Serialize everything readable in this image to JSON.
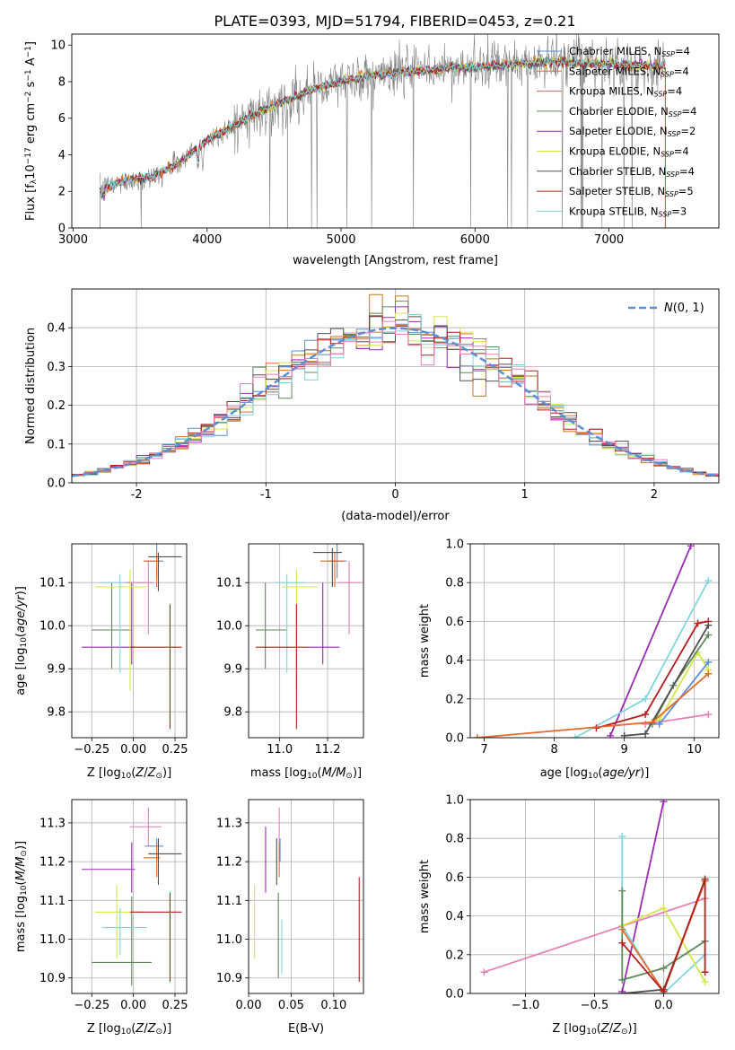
{
  "figure": {
    "title": "PLATE=0393, MJD=51794, FIBERID=0453, z=0.21"
  },
  "colors": {
    "data": "#808080",
    "gaussian": "#5b8fd6"
  },
  "chart_data": [
    {
      "id": "spectrum",
      "type": "line",
      "xlabel": "wavelength [Angstrom, rest frame]",
      "ylabel": "Flux [f_λ 10^-17 erg cm^-2 s^-1 A^-1]",
      "xlim": [
        2990,
        7820
      ],
      "ylim": [
        0,
        10.6
      ],
      "xticks": [
        3000,
        4000,
        5000,
        6000,
        7000
      ],
      "yticks": [
        0,
        2,
        4,
        6,
        8,
        10
      ],
      "grid": false,
      "legend_position": "bottom-right",
      "legend": [
        {
          "label": "Chabrier MILES, N_SSP=4",
          "color": "#5b8fd6"
        },
        {
          "label": "Salpeter MILES, N_SSP=4",
          "color": "#e8692a"
        },
        {
          "label": "Kroupa MILES, N_SSP=4",
          "color": "#c8781a"
        },
        {
          "label": "Chabrier ELODIE, N_SSP=4",
          "color": "#5e8b5e"
        },
        {
          "label": "Salpeter ELODIE, N_SSP=2",
          "color": "#9b2ab5"
        },
        {
          "label": "Kroupa ELODIE, N_SSP=4",
          "color": "#d4e84a"
        },
        {
          "label": "Chabrier STELIB, N_SSP=4",
          "color": "#505050"
        },
        {
          "label": "Salpeter STELIB, N_SSP=5",
          "color": "#b51c1c"
        },
        {
          "label": "Kroupa STELIB, N_SSP=3",
          "color": "#7fd6e0"
        }
      ],
      "continuum": {
        "x": [
          3200,
          3400,
          3600,
          3800,
          4000,
          4200,
          4400,
          4600,
          4800,
          5000,
          5200,
          5400,
          5600,
          5800,
          6000,
          6200,
          6400,
          6600,
          6800,
          7000,
          7200,
          7400
        ],
        "y": [
          2.1,
          2.6,
          2.8,
          3.6,
          4.8,
          5.6,
          6.4,
          7.0,
          7.6,
          8.0,
          8.3,
          8.5,
          8.6,
          8.7,
          8.8,
          8.9,
          9.0,
          9.1,
          9.0,
          9.0,
          8.9,
          8.8
        ]
      },
      "data_range": [
        3200,
        7420
      ]
    },
    {
      "id": "residual_hist",
      "type": "histogram",
      "xlabel": "(data-model)/error",
      "ylabel": "Normed distribution",
      "xlim": [
        -2.5,
        2.5
      ],
      "ylim": [
        0,
        0.5
      ],
      "xticks": [
        -2,
        -1,
        0,
        1,
        2
      ],
      "yticks": [
        0.0,
        0.1,
        0.2,
        0.3,
        0.4
      ],
      "grid": true,
      "legend_position": "top-right",
      "reference_curve": {
        "label": "N(0, 1)",
        "mean": 0,
        "sigma": 1
      },
      "bin_width": 0.1,
      "series_colors": [
        "#5b8fd6",
        "#e8692a",
        "#c8781a",
        "#5e8b5e",
        "#9b2ab5",
        "#d4e84a",
        "#505050",
        "#b51c1c",
        "#7fd6e0",
        "#e87fb5"
      ]
    },
    {
      "id": "age_vs_Z",
      "type": "errorbar",
      "xlabel": "Z [log10(Z/Z⊙)]",
      "ylabel": "age [log10(age/yr)]",
      "xlim": [
        -0.37,
        0.32
      ],
      "ylim": [
        9.74,
        10.19
      ],
      "xticks": [
        -0.25,
        0.0,
        0.25
      ],
      "xtick_labels": [
        "−0.25",
        "0.00",
        "0.25"
      ],
      "yticks": [
        9.8,
        9.9,
        10.0,
        10.1
      ],
      "grid": true,
      "points": [
        {
          "x": 0.14,
          "y": 10.15,
          "xerr": [
            0.07,
            0.04
          ],
          "yerr": [
            0.04,
            0.04
          ],
          "color": "#5b8fd6"
        },
        {
          "x": 0.14,
          "y": 10.15,
          "xerr": [
            0.08,
            0.02
          ],
          "yerr": [
            0.06,
            0.02
          ],
          "color": "#e8692a"
        },
        {
          "x": 0.15,
          "y": 10.16,
          "xerr": [
            0.06,
            0.14
          ],
          "yerr": [
            0.08,
            0.01
          ],
          "color": "#505050"
        },
        {
          "x": -0.01,
          "y": 9.95,
          "xerr": [
            0.3,
            0.02
          ],
          "yerr": [
            0.04,
            0.15
          ],
          "color": "#9b2ab5"
        },
        {
          "x": -0.13,
          "y": 9.99,
          "xerr": [
            0.12,
            0.12
          ],
          "yerr": [
            0.09,
            0.11
          ],
          "color": "#5e8b5e"
        },
        {
          "x": -0.02,
          "y": 10.09,
          "xerr": [
            0.21,
            0.1
          ],
          "yerr": [
            0.24,
            0.04
          ],
          "color": "#d4e84a"
        },
        {
          "x": -0.08,
          "y": 10.1,
          "xerr": [
            0.11,
            0.16
          ],
          "yerr": [
            0.21,
            0.02
          ],
          "color": "#7fd6e0"
        },
        {
          "x": 0.09,
          "y": 10.1,
          "xerr": [
            0.14,
            0.03
          ],
          "yerr": [
            0.12,
            0.05
          ],
          "color": "#e87fb5"
        },
        {
          "x": 0.22,
          "y": 9.95,
          "xerr": [
            0.24,
            0.07
          ],
          "yerr": [
            0.19,
            0.1
          ],
          "color": "#b51c1c"
        }
      ]
    },
    {
      "id": "age_vs_mass",
      "type": "errorbar",
      "xlabel": "mass [log10(M/M⊙)]",
      "xlim": [
        10.87,
        11.35
      ],
      "ylim": [
        9.74,
        10.19
      ],
      "xticks": [
        11.0,
        11.2
      ],
      "yticks": [
        9.8,
        9.9,
        10.0,
        10.1
      ],
      "grid": true,
      "points": [
        {
          "x": 11.24,
          "y": 10.15,
          "xerr": [
            0.04,
            0.04
          ],
          "yerr": [
            0.04,
            0.04
          ],
          "color": "#5b8fd6"
        },
        {
          "x": 11.23,
          "y": 10.15,
          "xerr": [
            0.06,
            0.04
          ],
          "yerr": [
            0.06,
            0.02
          ],
          "color": "#e8692a"
        },
        {
          "x": 11.22,
          "y": 10.17,
          "xerr": [
            0.08,
            0.04
          ],
          "yerr": [
            0.08,
            0.01
          ],
          "color": "#505050"
        },
        {
          "x": 11.18,
          "y": 9.95,
          "xerr": [
            0.06,
            0.07
          ],
          "yerr": [
            0.04,
            0.15
          ],
          "color": "#9b2ab5"
        },
        {
          "x": 10.94,
          "y": 9.99,
          "xerr": [
            0.04,
            0.09
          ],
          "yerr": [
            0.09,
            0.11
          ],
          "color": "#5e8b5e"
        },
        {
          "x": 11.07,
          "y": 10.09,
          "xerr": [
            0.06,
            0.09
          ],
          "yerr": [
            0.24,
            0.04
          ],
          "color": "#d4e84a"
        },
        {
          "x": 11.03,
          "y": 10.1,
          "xerr": [
            0.05,
            0.08
          ],
          "yerr": [
            0.21,
            0.02
          ],
          "color": "#7fd6e0"
        },
        {
          "x": 11.29,
          "y": 10.1,
          "xerr": [
            0.05,
            0.05
          ],
          "yerr": [
            0.12,
            0.05
          ],
          "color": "#e87fb5"
        },
        {
          "x": 11.07,
          "y": 9.95,
          "xerr": [
            0.17,
            0.05
          ],
          "yerr": [
            0.19,
            0.1
          ],
          "color": "#b51c1c"
        }
      ]
    },
    {
      "id": "weight_vs_age",
      "type": "line",
      "xlabel": "age [log10(age/yr)]",
      "ylabel": "mass weight",
      "xlim": [
        6.8,
        10.35
      ],
      "ylim": [
        0,
        1.0
      ],
      "xticks": [
        7,
        8,
        9,
        10
      ],
      "yticks": [
        0.0,
        0.2,
        0.4,
        0.6,
        0.8,
        1.0
      ],
      "grid": true,
      "series": [
        {
          "color": "#9b2ab5",
          "x": [
            8.8,
            9.95
          ],
          "y": [
            0.01,
            0.99
          ]
        },
        {
          "color": "#7fd6e0",
          "x": [
            8.3,
            9.3,
            10.2
          ],
          "y": [
            0.0,
            0.2,
            0.81
          ]
        },
        {
          "color": "#b51c1c",
          "x": [
            8.6,
            9.3,
            10.05,
            10.2
          ],
          "y": [
            0.05,
            0.12,
            0.59,
            0.6
          ]
        },
        {
          "color": "#e87fb5",
          "x": [
            9.3,
            10.2
          ],
          "y": [
            0.07,
            0.12
          ]
        },
        {
          "color": "#d4e84a",
          "x": [
            9.5,
            10.05,
            10.2
          ],
          "y": [
            0.09,
            0.44,
            0.35
          ]
        },
        {
          "color": "#5e8b5e",
          "x": [
            9.4,
            9.7,
            10.2
          ],
          "y": [
            0.07,
            0.27,
            0.53
          ]
        },
        {
          "color": "#505050",
          "x": [
            9.0,
            9.3,
            10.2
          ],
          "y": [
            0.01,
            0.02,
            0.58
          ]
        },
        {
          "color": "#5b8fd6",
          "x": [
            9.5,
            10.2
          ],
          "y": [
            0.07,
            0.39
          ]
        },
        {
          "color": "#e8692a",
          "x": [
            6.9,
            9.4,
            10.2
          ],
          "y": [
            0.0,
            0.08,
            0.33
          ]
        }
      ]
    },
    {
      "id": "mass_vs_Z",
      "type": "errorbar",
      "xlabel": "Z [log10(Z/Z⊙)]",
      "ylabel": "mass [log10(M/M⊙)]",
      "xlim": [
        -0.37,
        0.32
      ],
      "ylim": [
        10.86,
        11.36
      ],
      "xticks": [
        -0.25,
        0.0,
        0.25
      ],
      "xtick_labels": [
        "−0.25",
        "0.00",
        "0.25"
      ],
      "yticks": [
        10.9,
        11.0,
        11.1,
        11.2,
        11.3
      ],
      "grid": true,
      "points": [
        {
          "x": 0.14,
          "y": 11.24,
          "xerr": [
            0.07,
            0.04
          ],
          "yerr": [
            0.04,
            0.02
          ],
          "color": "#5b8fd6"
        },
        {
          "x": 0.14,
          "y": 11.21,
          "xerr": [
            0.08,
            0.02
          ],
          "yerr": [
            0.05,
            0.04
          ],
          "color": "#e8692a"
        },
        {
          "x": 0.15,
          "y": 11.22,
          "xerr": [
            0.06,
            0.14
          ],
          "yerr": [
            0.08,
            0.04
          ],
          "color": "#505050"
        },
        {
          "x": -0.01,
          "y": 11.18,
          "xerr": [
            0.3,
            0.02
          ],
          "yerr": [
            0.06,
            0.07
          ],
          "color": "#9b2ab5"
        },
        {
          "x": -0.01,
          "y": 10.94,
          "xerr": [
            0.24,
            0.12
          ],
          "yerr": [
            0.06,
            0.17
          ],
          "color": "#5e8b5e"
        },
        {
          "x": -0.1,
          "y": 11.07,
          "xerr": [
            0.13,
            0.16
          ],
          "yerr": [
            0.12,
            0.07
          ],
          "color": "#d4e84a"
        },
        {
          "x": -0.08,
          "y": 11.03,
          "xerr": [
            0.11,
            0.16
          ],
          "yerr": [
            0.07,
            0.05
          ],
          "color": "#7fd6e0"
        },
        {
          "x": 0.09,
          "y": 11.29,
          "xerr": [
            0.11,
            0.08
          ],
          "yerr": [
            0.05,
            0.05
          ],
          "color": "#e87fb5"
        },
        {
          "x": 0.22,
          "y": 11.07,
          "xerr": [
            0.24,
            0.07
          ],
          "yerr": [
            0.18,
            0.05
          ],
          "color": "#b51c1c"
        }
      ]
    },
    {
      "id": "mass_vs_ebv",
      "type": "errorbar",
      "xlabel": "E(B-V)",
      "xlim": [
        0.0,
        0.135
      ],
      "ylim": [
        10.86,
        11.36
      ],
      "xticks": [
        0.0,
        0.05,
        0.1
      ],
      "xtick_labels": [
        "0.00",
        "0.05",
        "0.10"
      ],
      "yticks": [
        10.9,
        11.0,
        11.1,
        11.2,
        11.3
      ],
      "grid": true,
      "points": [
        {
          "x": 0.037,
          "y": 11.24,
          "xerr": [
            0,
            0
          ],
          "yerr": [
            0.04,
            0.02
          ],
          "color": "#5b8fd6"
        },
        {
          "x": 0.036,
          "y": 11.21,
          "xerr": [
            0,
            0
          ],
          "yerr": [
            0.05,
            0.04
          ],
          "color": "#e8692a"
        },
        {
          "x": 0.033,
          "y": 11.22,
          "xerr": [
            0,
            0
          ],
          "yerr": [
            0.08,
            0.04
          ],
          "color": "#505050"
        },
        {
          "x": 0.02,
          "y": 11.18,
          "xerr": [
            0,
            0
          ],
          "yerr": [
            0.06,
            0.11
          ],
          "color": "#9b2ab5"
        },
        {
          "x": 0.035,
          "y": 11.0,
          "xerr": [
            0,
            0
          ],
          "yerr": [
            0.1,
            0.12
          ],
          "color": "#5e8b5e"
        },
        {
          "x": 0.007,
          "y": 11.05,
          "xerr": [
            0,
            0
          ],
          "yerr": [
            0.1,
            0.09
          ],
          "color": "#d4e84a"
        },
        {
          "x": 0.039,
          "y": 10.95,
          "xerr": [
            0,
            0
          ],
          "yerr": [
            0.04,
            0.1
          ],
          "color": "#7fd6e0"
        },
        {
          "x": 0.036,
          "y": 11.29,
          "xerr": [
            0,
            0
          ],
          "yerr": [
            0.04,
            0.05
          ],
          "color": "#e87fb5"
        },
        {
          "x": 0.13,
          "y": 11.02,
          "xerr": [
            0,
            0
          ],
          "yerr": [
            0.13,
            0.14
          ],
          "color": "#b51c1c"
        }
      ]
    },
    {
      "id": "weight_vs_Z",
      "type": "line",
      "xlabel": "Z [log10(Z/Z⊙)]",
      "ylabel": "mass weight",
      "xlim": [
        -1.4,
        0.4
      ],
      "ylim": [
        0,
        1.0
      ],
      "xticks": [
        -1.0,
        -0.5,
        0.0
      ],
      "xtick_labels": [
        "−1.0",
        "−0.5",
        "0.0"
      ],
      "yticks": [
        0.0,
        0.2,
        0.4,
        0.6,
        0.8,
        1.0
      ],
      "grid": true,
      "series": [
        {
          "color": "#9b2ab5",
          "x": [
            -0.3,
            0.0
          ],
          "y": [
            0.01,
            0.99
          ]
        },
        {
          "color": "#7fd6e0",
          "x": [
            -0.3,
            -0.3,
            0.0,
            0.3
          ],
          "y": [
            0.81,
            0.35,
            0.0,
            0.2
          ]
        },
        {
          "color": "#e87fb5",
          "x": [
            -1.3,
            0.3
          ],
          "y": [
            0.11,
            0.49
          ]
        },
        {
          "color": "#d4e84a",
          "x": [
            -0.3,
            0.0,
            0.3
          ],
          "y": [
            0.35,
            0.44,
            0.06
          ]
        },
        {
          "color": "#5e8b5e",
          "x": [
            -0.3,
            -0.3,
            0.0,
            0.3
          ],
          "y": [
            0.53,
            0.07,
            0.13,
            0.27
          ]
        },
        {
          "color": "#505050",
          "x": [
            -0.3,
            0.0,
            0.3
          ],
          "y": [
            0.0,
            0.02,
            0.58
          ]
        },
        {
          "color": "#e8692a",
          "x": [
            -0.3,
            0.0,
            0.3
          ],
          "y": [
            0.33,
            0.01,
            0.58
          ]
        },
        {
          "color": "#b51c1c",
          "x": [
            -0.3,
            0.0,
            0.3,
            0.3
          ],
          "y": [
            0.26,
            0.01,
            0.59,
            0.11
          ]
        }
      ]
    }
  ]
}
